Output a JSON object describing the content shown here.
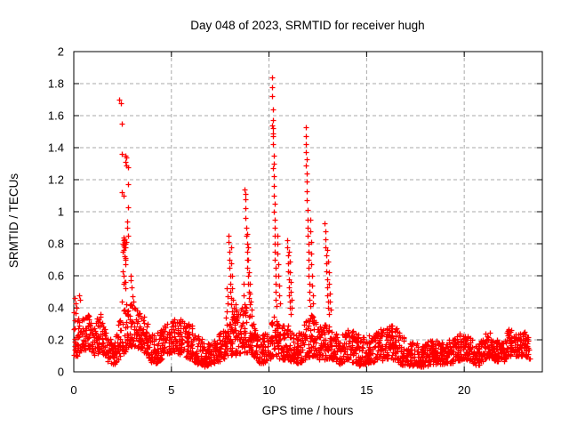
{
  "page": {
    "background": "#ffffff"
  },
  "chart_data": {
    "type": "scatter",
    "title": "Day 048 of 2023, SRMTID for receiver hugh",
    "xlabel": "GPS time / hours",
    "ylabel": "SRMTID / TECUs",
    "xlim": [
      0,
      24
    ],
    "ylim": [
      0,
      2
    ],
    "xticks": {
      "values": [
        0,
        5,
        10,
        15,
        20
      ],
      "labels": [
        "0",
        "5",
        "10",
        "15",
        "20"
      ]
    },
    "yticks": {
      "values": [
        0,
        0.2,
        0.4,
        0.6,
        0.8,
        1,
        1.2,
        1.4,
        1.6,
        1.8,
        2
      ],
      "labels": [
        "0",
        "0.2",
        "0.4",
        "0.6",
        "0.8",
        "1",
        "1.2",
        "1.4",
        "1.6",
        "1.8",
        "2"
      ]
    },
    "grid": true,
    "grid_color": "#aaaaaa",
    "legend": null,
    "marker": {
      "glyph": "+",
      "color": "#ff0000",
      "size": 7
    },
    "data_time_range_hours": [
      0,
      23.4
    ],
    "spike_points": [
      [
        0.06,
        0.46
      ],
      [
        0.09,
        0.43
      ],
      [
        0.14,
        0.4
      ],
      [
        0.27,
        0.48
      ],
      [
        0.3,
        0.45
      ],
      [
        2.33,
        1.7
      ],
      [
        2.4,
        1.68
      ],
      [
        2.45,
        1.55
      ],
      [
        2.46,
        1.36
      ],
      [
        2.48,
        1.12
      ],
      [
        2.55,
        1.1
      ],
      [
        2.62,
        1.35
      ],
      [
        2.64,
        1.31
      ],
      [
        2.68,
        1.34
      ],
      [
        2.7,
        1.29
      ],
      [
        2.77,
        1.28
      ],
      [
        2.78,
        1.17
      ],
      [
        2.8,
        1.03
      ],
      [
        2.52,
        0.8
      ],
      [
        2.55,
        0.82
      ],
      [
        2.57,
        0.79
      ],
      [
        2.59,
        0.81
      ],
      [
        2.61,
        0.83
      ],
      [
        2.63,
        0.8
      ],
      [
        2.65,
        0.78
      ],
      [
        2.67,
        0.81
      ],
      [
        2.6,
        0.78
      ],
      [
        2.56,
        0.84
      ],
      [
        2.71,
        0.94
      ],
      [
        2.73,
        0.9
      ],
      [
        2.8,
        0.85
      ],
      [
        2.5,
        0.75
      ],
      [
        2.55,
        0.76
      ],
      [
        2.58,
        0.72
      ],
      [
        2.62,
        0.71
      ],
      [
        2.65,
        0.7
      ],
      [
        2.66,
        0.67
      ],
      [
        2.56,
        0.6
      ],
      [
        2.6,
        0.56
      ],
      [
        2.63,
        0.56
      ],
      [
        2.66,
        0.52
      ],
      [
        2.45,
        0.44
      ],
      [
        2.52,
        0.63
      ],
      [
        2.53,
        0.55
      ],
      [
        2.9,
        0.6
      ],
      [
        2.93,
        0.57
      ],
      [
        2.96,
        0.53
      ],
      [
        3.0,
        0.47
      ],
      [
        3.05,
        0.44
      ],
      [
        7.92,
        0.85
      ],
      [
        7.93,
        0.81
      ],
      [
        7.95,
        0.75
      ],
      [
        7.96,
        0.7
      ],
      [
        7.98,
        0.65
      ],
      [
        8.0,
        0.6
      ],
      [
        8.01,
        0.55
      ],
      [
        8.03,
        0.5
      ],
      [
        8.05,
        0.46
      ],
      [
        8.07,
        0.42
      ],
      [
        8.1,
        0.38
      ],
      [
        8.13,
        0.34
      ],
      [
        7.85,
        0.52
      ],
      [
        7.88,
        0.47
      ],
      [
        7.9,
        0.43
      ],
      [
        7.83,
        0.38
      ],
      [
        7.8,
        0.34
      ],
      [
        8.06,
        0.78
      ],
      [
        8.08,
        0.68
      ],
      [
        8.1,
        0.6
      ],
      [
        8.12,
        0.52
      ],
      [
        8.15,
        0.45
      ],
      [
        8.18,
        0.4
      ],
      [
        8.21,
        0.35
      ],
      [
        8.24,
        0.31
      ],
      [
        8.3,
        0.42
      ],
      [
        8.33,
        0.38
      ],
      [
        8.36,
        0.34
      ],
      [
        8.4,
        0.31
      ],
      [
        8.76,
        1.14
      ],
      [
        8.77,
        1.11
      ],
      [
        8.78,
        1.08
      ],
      [
        8.8,
        1.02
      ],
      [
        8.81,
        0.96
      ],
      [
        8.83,
        0.9
      ],
      [
        8.84,
        0.85
      ],
      [
        8.86,
        0.8
      ],
      [
        8.87,
        0.75
      ],
      [
        8.89,
        0.7
      ],
      [
        8.9,
        0.65
      ],
      [
        8.92,
        0.6
      ],
      [
        8.94,
        0.55
      ],
      [
        8.96,
        0.5
      ],
      [
        8.98,
        0.46
      ],
      [
        9.0,
        0.42
      ],
      [
        8.9,
        0.86
      ],
      [
        8.92,
        0.78
      ],
      [
        8.94,
        0.7
      ],
      [
        8.97,
        0.62
      ],
      [
        9.0,
        0.55
      ],
      [
        9.03,
        0.49
      ],
      [
        9.06,
        0.44
      ],
      [
        9.09,
        0.39
      ],
      [
        9.12,
        0.35
      ],
      [
        8.7,
        0.55
      ],
      [
        8.72,
        0.48
      ],
      [
        8.74,
        0.42
      ],
      [
        8.68,
        0.38
      ],
      [
        10.16,
        1.84
      ],
      [
        10.16,
        1.78
      ],
      [
        10.17,
        1.72
      ],
      [
        10.18,
        1.64
      ],
      [
        10.19,
        1.57
      ],
      [
        10.17,
        1.54
      ],
      [
        10.2,
        1.52
      ],
      [
        10.21,
        1.49
      ],
      [
        10.19,
        1.47
      ],
      [
        10.22,
        1.42
      ],
      [
        10.23,
        1.35
      ],
      [
        10.24,
        1.3
      ],
      [
        10.22,
        1.27
      ],
      [
        10.25,
        1.22
      ],
      [
        10.24,
        1.16
      ],
      [
        10.26,
        1.1
      ],
      [
        10.27,
        1.05
      ],
      [
        10.26,
        1.0
      ],
      [
        10.28,
        0.95
      ],
      [
        10.29,
        0.9
      ],
      [
        10.28,
        0.85
      ],
      [
        10.3,
        0.8
      ],
      [
        10.31,
        0.75
      ],
      [
        10.3,
        0.7
      ],
      [
        10.32,
        0.65
      ],
      [
        10.33,
        0.6
      ],
      [
        10.34,
        0.55
      ],
      [
        10.35,
        0.5
      ],
      [
        10.36,
        0.45
      ],
      [
        10.38,
        0.41
      ],
      [
        10.42,
        0.85
      ],
      [
        10.44,
        0.8
      ],
      [
        10.45,
        0.74
      ],
      [
        10.47,
        0.67
      ],
      [
        10.48,
        0.6
      ],
      [
        10.5,
        0.54
      ],
      [
        10.52,
        0.48
      ],
      [
        10.55,
        0.43
      ],
      [
        10.93,
        0.82
      ],
      [
        10.94,
        0.78
      ],
      [
        10.96,
        0.73
      ],
      [
        10.97,
        0.68
      ],
      [
        10.99,
        0.63
      ],
      [
        11.0,
        0.58
      ],
      [
        11.02,
        0.53
      ],
      [
        11.04,
        0.48
      ],
      [
        11.06,
        0.44
      ],
      [
        11.08,
        0.4
      ],
      [
        11.1,
        0.36
      ],
      [
        11.03,
        0.75
      ],
      [
        11.05,
        0.69
      ],
      [
        11.07,
        0.62
      ],
      [
        11.1,
        0.56
      ],
      [
        11.12,
        0.5
      ],
      [
        11.15,
        0.45
      ],
      [
        11.18,
        0.4
      ],
      [
        11.87,
        1.53
      ],
      [
        11.88,
        1.47
      ],
      [
        11.89,
        1.42
      ],
      [
        11.9,
        1.37
      ],
      [
        11.91,
        1.33
      ],
      [
        11.9,
        1.29
      ],
      [
        11.92,
        1.24
      ],
      [
        11.93,
        1.19
      ],
      [
        11.94,
        1.13
      ],
      [
        11.95,
        1.07
      ],
      [
        11.96,
        1.01
      ],
      [
        11.97,
        0.95
      ],
      [
        11.98,
        0.9
      ],
      [
        11.99,
        0.85
      ],
      [
        12.0,
        0.8
      ],
      [
        12.01,
        0.75
      ],
      [
        12.02,
        0.7
      ],
      [
        12.03,
        0.65
      ],
      [
        12.04,
        0.6
      ],
      [
        12.05,
        0.55
      ],
      [
        12.06,
        0.5
      ],
      [
        12.08,
        0.45
      ],
      [
        12.1,
        0.41
      ],
      [
        12.1,
        0.95
      ],
      [
        12.12,
        0.88
      ],
      [
        12.14,
        0.81
      ],
      [
        12.16,
        0.74
      ],
      [
        12.18,
        0.67
      ],
      [
        12.2,
        0.6
      ],
      [
        12.22,
        0.54
      ],
      [
        12.24,
        0.48
      ],
      [
        12.26,
        0.43
      ],
      [
        12.86,
        0.93
      ],
      [
        12.87,
        0.88
      ],
      [
        12.89,
        0.83
      ],
      [
        12.9,
        0.78
      ],
      [
        12.92,
        0.73
      ],
      [
        12.93,
        0.68
      ],
      [
        12.95,
        0.63
      ],
      [
        12.96,
        0.58
      ],
      [
        12.98,
        0.53
      ],
      [
        13.0,
        0.48
      ],
      [
        13.02,
        0.44
      ],
      [
        13.04,
        0.4
      ],
      [
        13.06,
        0.36
      ],
      [
        13.0,
        0.76
      ],
      [
        13.02,
        0.69
      ],
      [
        13.05,
        0.62
      ],
      [
        13.08,
        0.55
      ],
      [
        13.1,
        0.49
      ],
      [
        13.13,
        0.44
      ],
      [
        13.16,
        0.39
      ]
    ],
    "baseline_envelope": {
      "description": "Dense noise band of + markers; control points are [t_hours, y_min, y_max] read from the plot; band is filled with markers between min and max.",
      "points_per_hour": 105,
      "low_bias_exponent": 1.35,
      "seed": 48,
      "control_points": [
        [
          0.0,
          0.08,
          0.42
        ],
        [
          0.35,
          0.12,
          0.36
        ],
        [
          0.75,
          0.15,
          0.37
        ],
        [
          1.05,
          0.1,
          0.3
        ],
        [
          1.4,
          0.12,
          0.41
        ],
        [
          1.75,
          0.06,
          0.22
        ],
        [
          2.1,
          0.05,
          0.2
        ],
        [
          2.45,
          0.1,
          0.42
        ],
        [
          2.75,
          0.14,
          0.42
        ],
        [
          3.1,
          0.15,
          0.43
        ],
        [
          3.45,
          0.14,
          0.36
        ],
        [
          3.75,
          0.1,
          0.33
        ],
        [
          4.1,
          0.04,
          0.24
        ],
        [
          4.5,
          0.08,
          0.27
        ],
        [
          4.9,
          0.12,
          0.34
        ],
        [
          5.25,
          0.12,
          0.33
        ],
        [
          5.6,
          0.1,
          0.34
        ],
        [
          5.95,
          0.08,
          0.33
        ],
        [
          6.3,
          0.05,
          0.28
        ],
        [
          6.7,
          0.03,
          0.18
        ],
        [
          7.1,
          0.05,
          0.2
        ],
        [
          7.5,
          0.07,
          0.25
        ],
        [
          7.85,
          0.1,
          0.32
        ],
        [
          8.2,
          0.1,
          0.38
        ],
        [
          8.55,
          0.12,
          0.42
        ],
        [
          8.9,
          0.12,
          0.4
        ],
        [
          9.2,
          0.1,
          0.3
        ],
        [
          9.55,
          0.04,
          0.22
        ],
        [
          9.9,
          0.07,
          0.27
        ],
        [
          10.2,
          0.1,
          0.4
        ],
        [
          10.55,
          0.07,
          0.3
        ],
        [
          10.9,
          0.08,
          0.33
        ],
        [
          11.25,
          0.06,
          0.25
        ],
        [
          11.55,
          0.05,
          0.25
        ],
        [
          11.9,
          0.08,
          0.33
        ],
        [
          12.2,
          0.1,
          0.36
        ],
        [
          12.55,
          0.08,
          0.3
        ],
        [
          12.9,
          0.08,
          0.3
        ],
        [
          13.25,
          0.08,
          0.28
        ],
        [
          13.6,
          0.05,
          0.22
        ],
        [
          13.95,
          0.07,
          0.26
        ],
        [
          14.3,
          0.06,
          0.28
        ],
        [
          14.65,
          0.04,
          0.22
        ],
        [
          15.0,
          0.05,
          0.22
        ],
        [
          15.35,
          0.06,
          0.25
        ],
        [
          15.7,
          0.07,
          0.27
        ],
        [
          16.05,
          0.07,
          0.28
        ],
        [
          16.4,
          0.08,
          0.31
        ],
        [
          16.75,
          0.04,
          0.24
        ],
        [
          17.1,
          0.04,
          0.2
        ],
        [
          17.45,
          0.04,
          0.18
        ],
        [
          17.8,
          0.03,
          0.17
        ],
        [
          18.15,
          0.04,
          0.19
        ],
        [
          18.5,
          0.05,
          0.2
        ],
        [
          18.85,
          0.05,
          0.18
        ],
        [
          19.2,
          0.05,
          0.2
        ],
        [
          19.55,
          0.06,
          0.22
        ],
        [
          19.95,
          0.08,
          0.26
        ],
        [
          20.3,
          0.07,
          0.22
        ],
        [
          20.65,
          0.03,
          0.16
        ],
        [
          21.0,
          0.07,
          0.24
        ],
        [
          21.25,
          0.09,
          0.27
        ],
        [
          21.6,
          0.07,
          0.2
        ],
        [
          21.95,
          0.06,
          0.19
        ],
        [
          22.3,
          0.1,
          0.28
        ],
        [
          22.65,
          0.1,
          0.23
        ],
        [
          23.0,
          0.1,
          0.27
        ],
        [
          23.35,
          0.08,
          0.2
        ]
      ]
    }
  }
}
